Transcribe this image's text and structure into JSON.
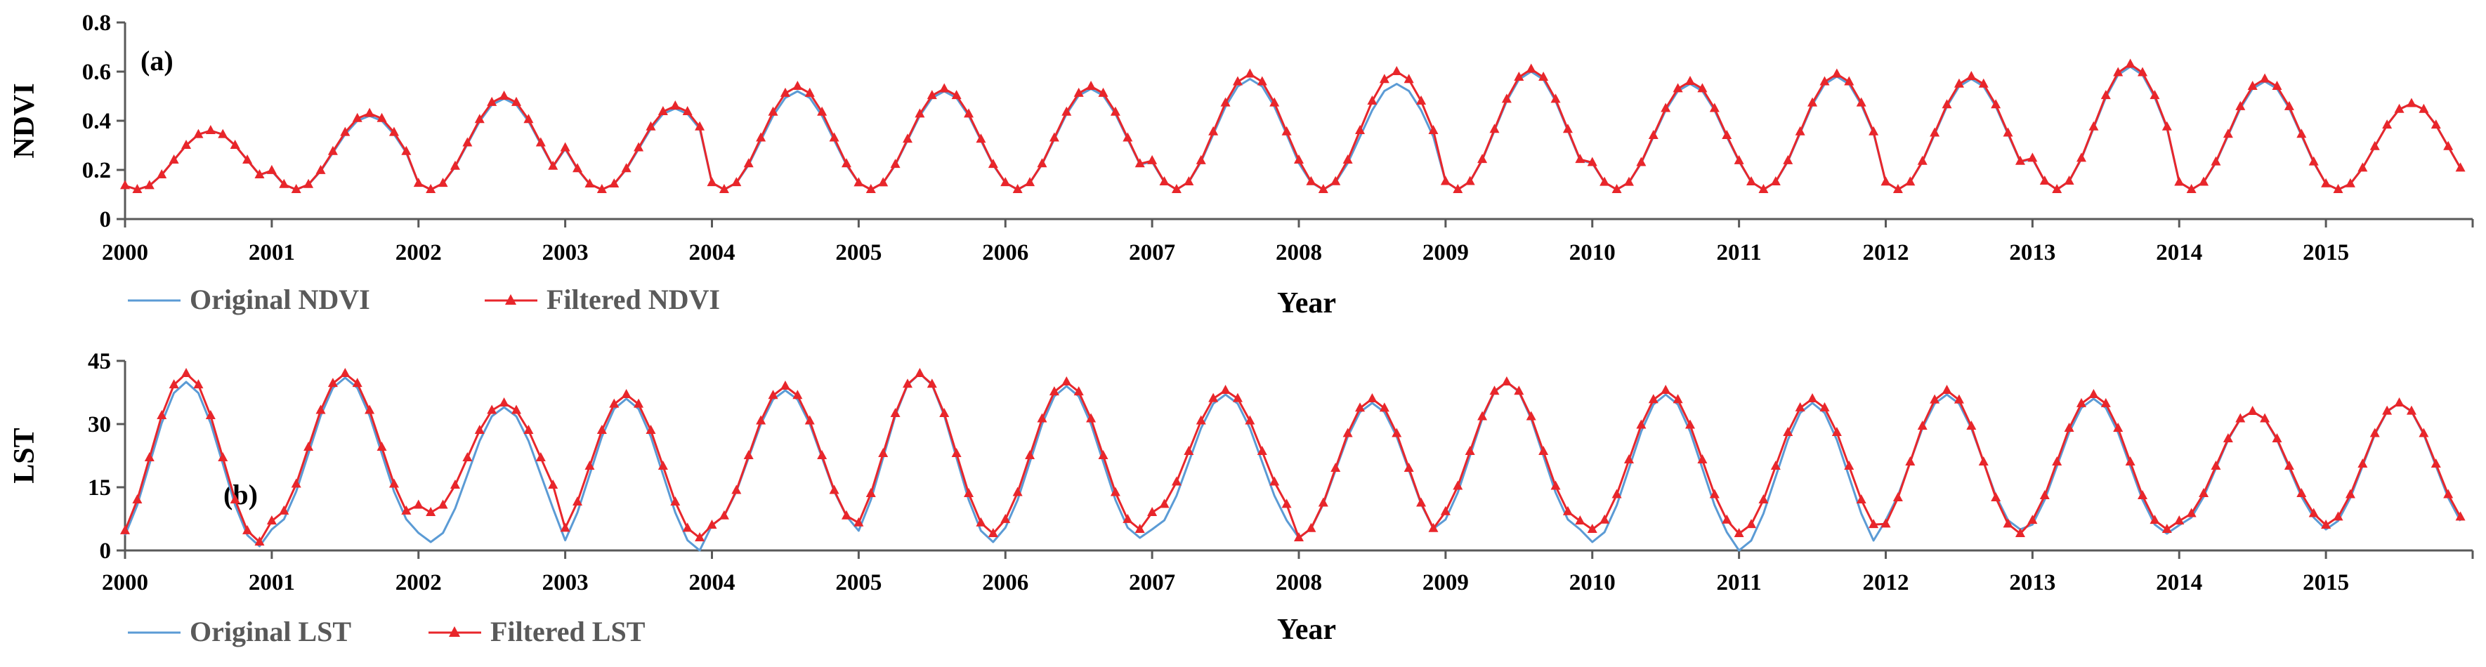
{
  "colors": {
    "original": "#5b9bd5",
    "filtered": "#e8262b"
  },
  "chart_data": [
    {
      "type": "line",
      "panel_label": "(a)",
      "ylabel": "NDVI",
      "xlabel": "Year",
      "ylim": [
        0,
        0.8
      ],
      "yticks": [
        "0",
        "0.2",
        "0.4",
        "0.6",
        "0.8"
      ],
      "xlim": [
        2000,
        2016
      ],
      "xticks": [
        "2000",
        "2001",
        "2002",
        "2003",
        "2004",
        "2005",
        "2006",
        "2007",
        "2008",
        "2009",
        "2010",
        "2011",
        "2012",
        "2013",
        "2014",
        "2015"
      ],
      "grid": false,
      "legend": "bottom-left",
      "series": [
        {
          "name": "Original NDVI",
          "kind": "original",
          "cycle": {
            "min": 0.12,
            "max": [
              0.36,
              0.42,
              0.49,
              0.45,
              0.52,
              0.52,
              0.53,
              0.57,
              0.55,
              0.6,
              0.55,
              0.58,
              0.57,
              0.62,
              0.56,
              0.47
            ],
            "peak_month": [
              7,
              8,
              7,
              9,
              7,
              7,
              7,
              8,
              8,
              7,
              8,
              8,
              7,
              8,
              7,
              7
            ]
          }
        },
        {
          "name": "Filtered NDVI",
          "kind": "filtered",
          "cycle": {
            "min": 0.12,
            "max": [
              0.36,
              0.43,
              0.5,
              0.46,
              0.54,
              0.53,
              0.54,
              0.59,
              0.6,
              0.61,
              0.56,
              0.59,
              0.58,
              0.63,
              0.57,
              0.47
            ],
            "peak_month": [
              7,
              8,
              7,
              9,
              7,
              7,
              7,
              8,
              8,
              7,
              8,
              8,
              7,
              8,
              7,
              7
            ]
          }
        }
      ]
    },
    {
      "type": "line",
      "panel_label": "(b)",
      "ylabel": "LST",
      "xlabel": "Year",
      "ylim": [
        0,
        45
      ],
      "yticks": [
        "0",
        "15",
        "30",
        "45"
      ],
      "xlim": [
        2000,
        2016
      ],
      "xticks": [
        "2000",
        "2001",
        "2002",
        "2003",
        "2004",
        "2005",
        "2006",
        "2007",
        "2008",
        "2009",
        "2010",
        "2011",
        "2012",
        "2013",
        "2014",
        "2015"
      ],
      "grid": false,
      "legend": "bottom-left",
      "series": [
        {
          "name": "Original LST",
          "kind": "original",
          "cycle": {
            "min": [
              1,
              5,
              2,
              0,
              6,
              2,
              3,
              5,
              3,
              5,
              2,
              0,
              5,
              4,
              6,
              5
            ],
            "max": [
              40,
              41,
              34,
              36,
              38,
              42,
              39,
              37,
              35,
              40,
              37,
              35,
              37,
              36,
              33,
              35
            ],
            "peak_month": [
              5,
              6,
              7,
              5,
              6,
              5,
              5,
              6,
              6,
              5,
              6,
              6,
              5,
              5,
              6,
              6
            ]
          }
        },
        {
          "name": "Filtered LST",
          "kind": "filtered",
          "cycle": {
            "min": [
              2,
              7,
              9,
              3,
              6,
              4,
              5,
              9,
              3,
              7,
              5,
              4,
              4,
              5,
              7,
              6
            ],
            "max": [
              42,
              42,
              35,
              37,
              39,
              42,
              40,
              38,
              36,
              40,
              38,
              36,
              38,
              37,
              33,
              35
            ],
            "peak_month": [
              5,
              6,
              7,
              5,
              6,
              5,
              5,
              6,
              6,
              5,
              6,
              6,
              5,
              5,
              6,
              6
            ]
          }
        }
      ]
    }
  ]
}
